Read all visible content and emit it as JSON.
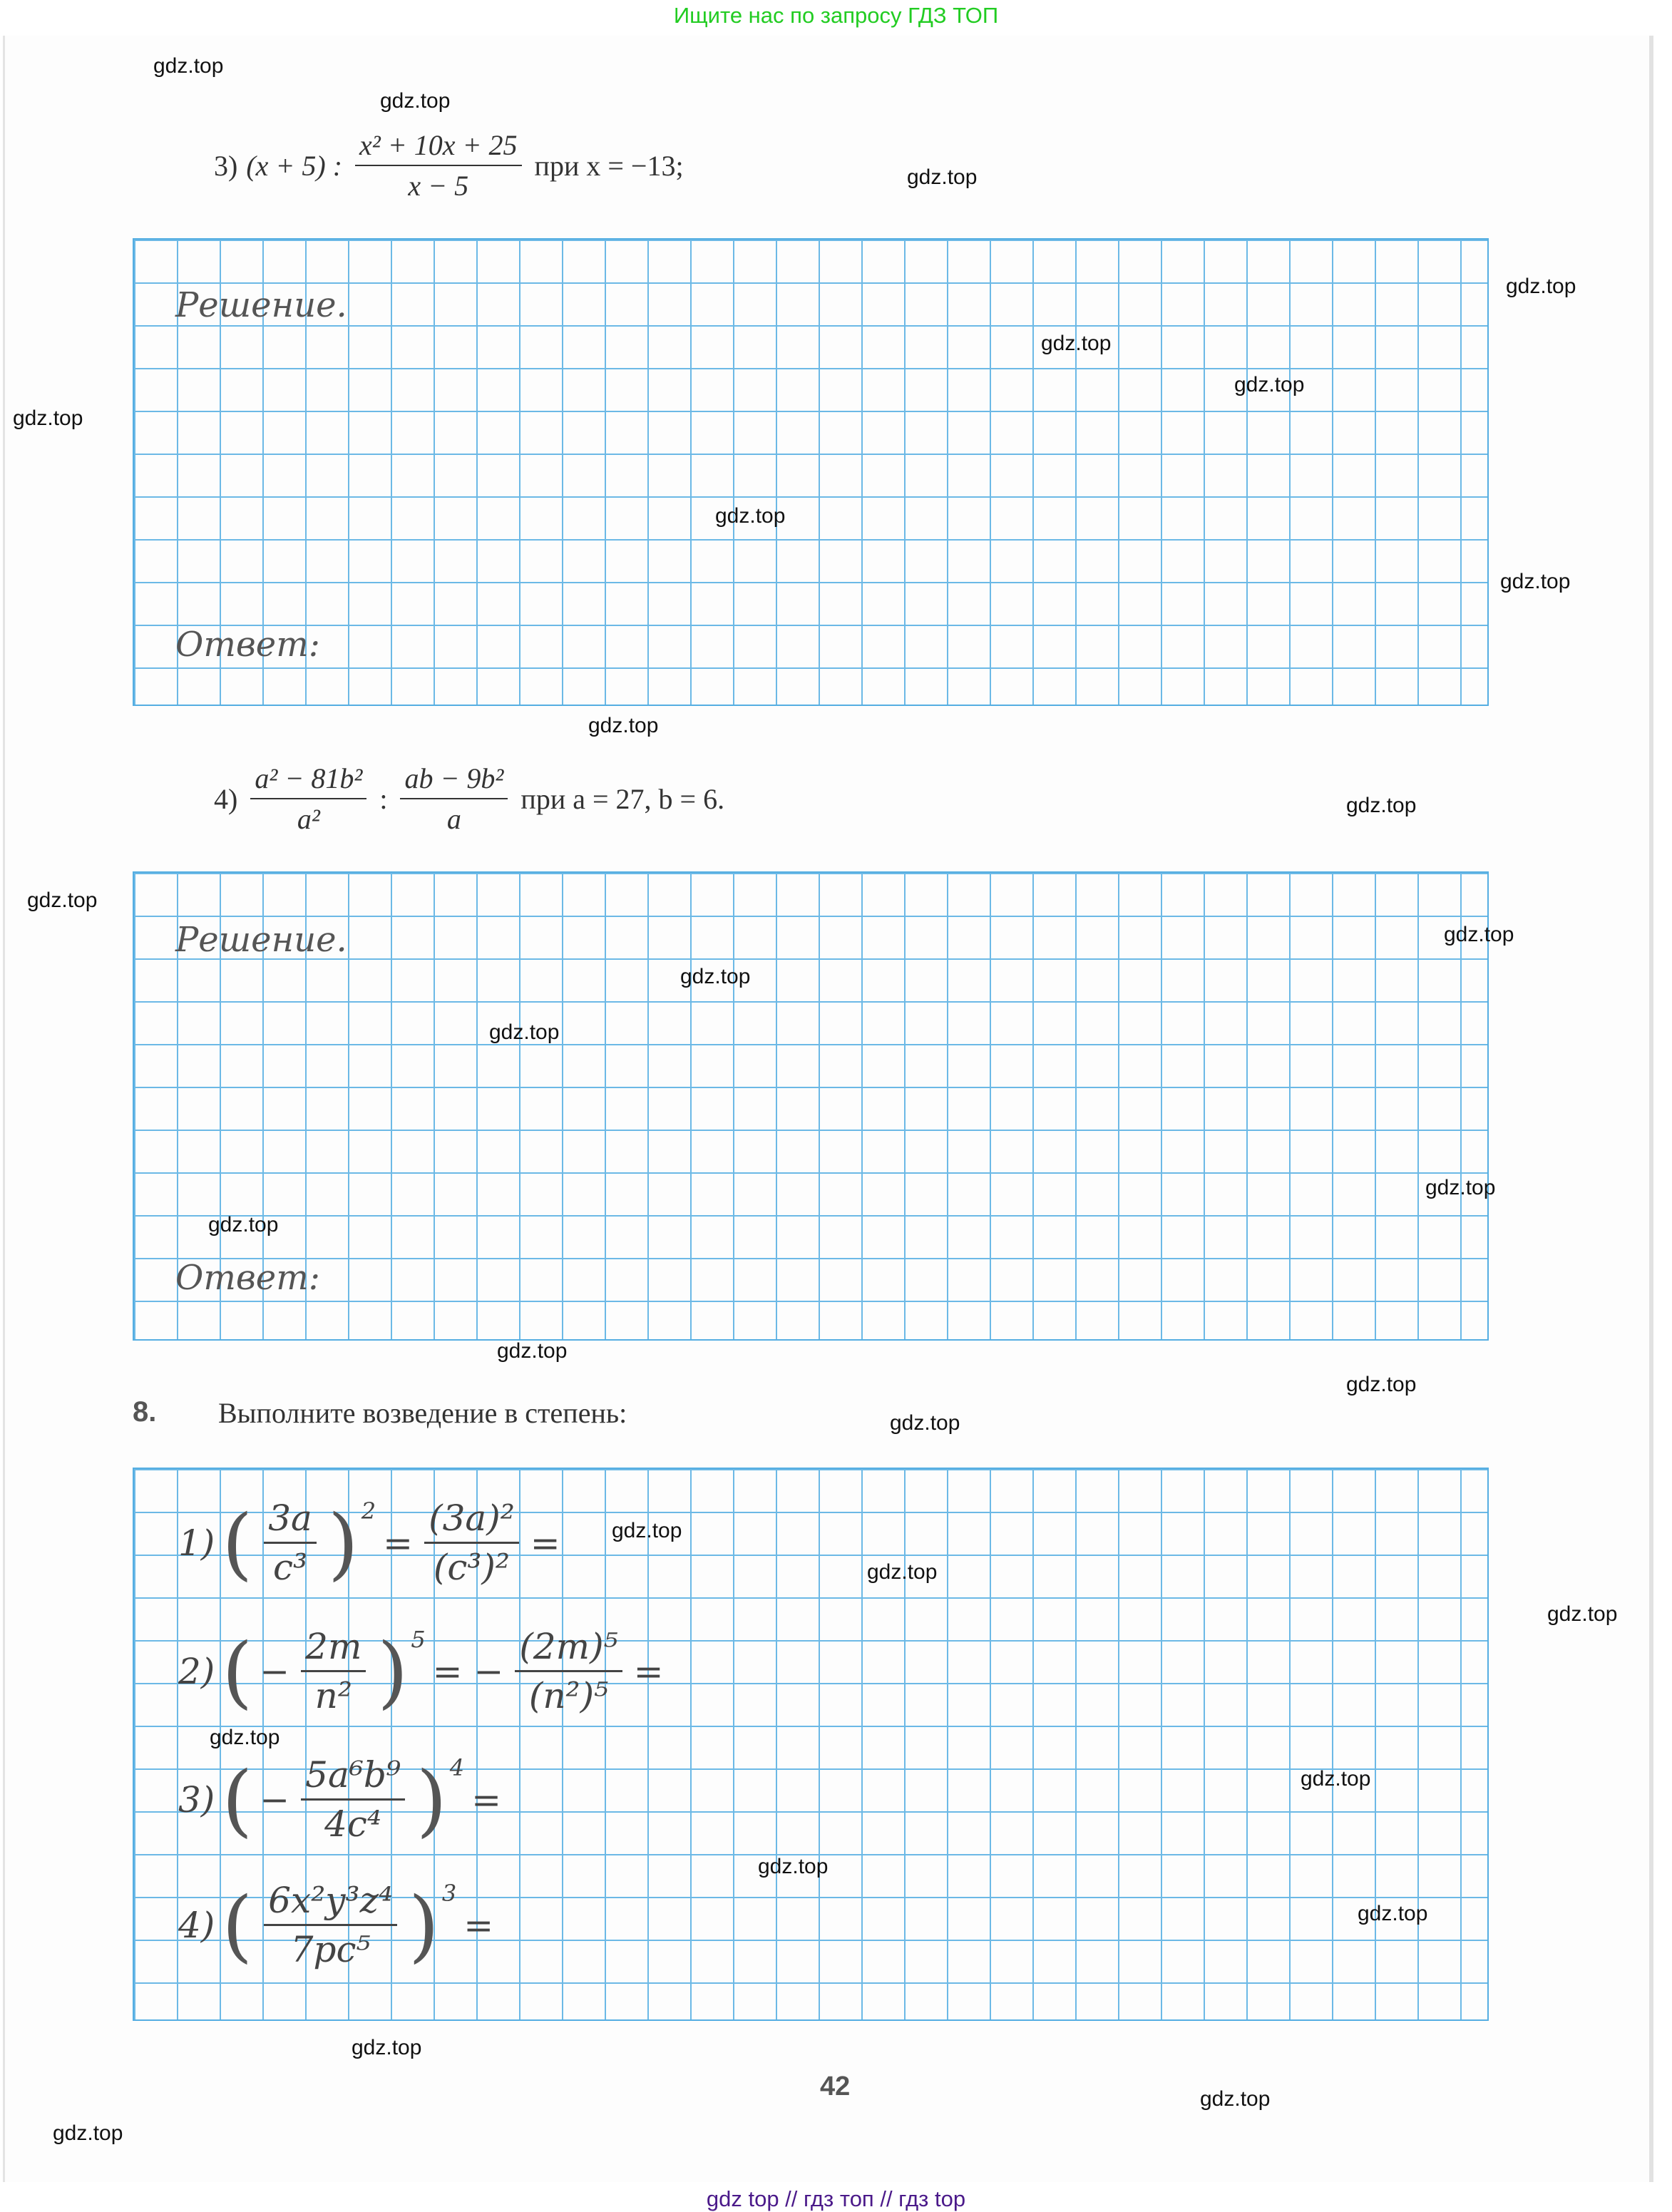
{
  "banner": "Ищите нас по запросу ГДЗ ТОП",
  "task3": {
    "num": "3)",
    "left": "(x + 5) :",
    "numerator": "x² + 10x + 25",
    "denominator": "x − 5",
    "cond": "при x = −13;"
  },
  "task4": {
    "num": "4)",
    "n1": "a² − 81b²",
    "d1": "a²",
    "op": ":",
    "n2": "ab − 9b²",
    "d2": "a",
    "cond": "при a = 27, b = 6."
  },
  "labels": {
    "solution": "Решение.",
    "answer": "Ответ:"
  },
  "exercise8": {
    "number": "8.",
    "title": "Выполните возведение в степень:",
    "items": [
      {
        "num": "1)",
        "n": "3a",
        "d": "c³",
        "pow": "2",
        "eq": "=",
        "rn": "(3a)²",
        "rd": "(c³)²",
        "eq2": "="
      },
      {
        "num": "2)",
        "sign": "−",
        "n": "2m",
        "d": "n²",
        "pow": "5",
        "eq": "= −",
        "rn": "(2m)⁵",
        "rd": "(n²)⁵",
        "eq2": "="
      },
      {
        "num": "3)",
        "sign": "−",
        "n": "5a⁶b⁹",
        "d": "4c⁴",
        "pow": "4",
        "eq": "="
      },
      {
        "num": "4)",
        "n": "6x²y³z⁴",
        "d": "7pc⁵",
        "pow": "3",
        "eq": "="
      }
    ]
  },
  "page_number": "42",
  "footer": "gdz top  //  гдз топ  //  гдз top",
  "watermarks": [
    "gdz.top",
    "gdz.top",
    "gdz.top",
    "gdz.top",
    "gdz.top",
    "gdz.top",
    "gdz.top",
    "gdz.top",
    "gdz.top",
    "gdz.top",
    "gdz.top",
    "gdz.top",
    "gdz.top",
    "gdz.top",
    "gdz.top",
    "gdz.top",
    "gdz.top",
    "gdz.top",
    "gdz.top",
    "gdz.top",
    "gdz.top",
    "gdz.top",
    "gdz.top",
    "gdz.top",
    "gdz.top",
    "gdz.top",
    "gdz.top",
    "gdz.top",
    "gdz.top",
    "gdz.top"
  ]
}
